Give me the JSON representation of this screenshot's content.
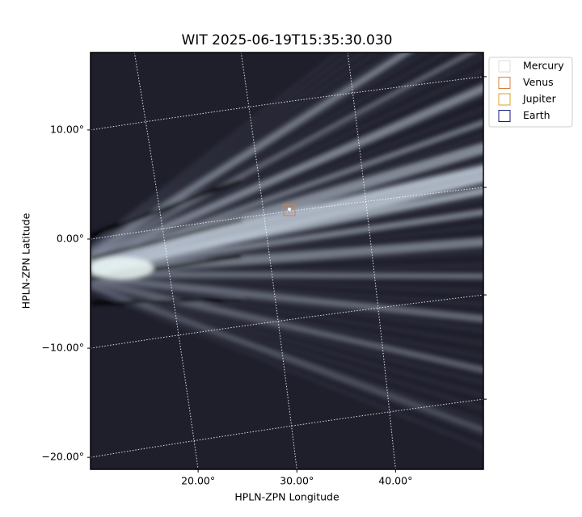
{
  "chart_data": {
    "type": "image",
    "title": "WIT 2025-06-19T15:35:30.030",
    "x_label": "HPLN-ZPN Longitude",
    "y_label": "HPLN-ZPN Latitude",
    "xlim": [
      9.1,
      48.9
    ],
    "ylim": [
      -21.1,
      17.1
    ],
    "xticks": [
      {
        "value": 20,
        "label": "20.00°"
      },
      {
        "value": 30,
        "label": "30.00°"
      },
      {
        "value": 40,
        "label": "40.00°"
      }
    ],
    "yticks": [
      {
        "value": -20,
        "label": "−20.00°"
      },
      {
        "value": -10,
        "label": "−10.00°"
      },
      {
        "value": 0,
        "label": "0.00°"
      },
      {
        "value": 10,
        "label": "10.00°"
      }
    ],
    "grid": true,
    "legend_position": "upper right",
    "legend": [
      {
        "name": "Mercury",
        "color": "#dddddd"
      },
      {
        "name": "Venus",
        "color": "#e07b39"
      },
      {
        "name": "Jupiter",
        "color": "#e0a020"
      },
      {
        "name": "Earth",
        "color": "#1a1a80"
      }
    ]
  }
}
